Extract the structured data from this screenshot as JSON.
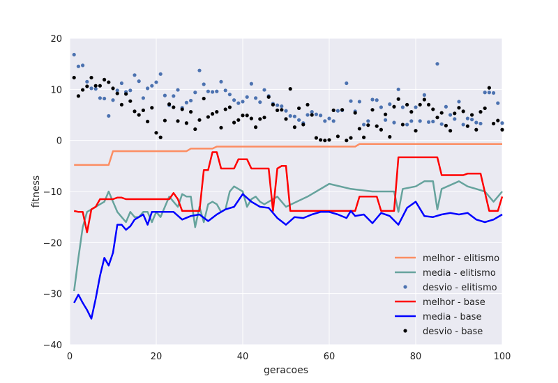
{
  "chart_data": {
    "type": "line",
    "xlabel": "geracoes",
    "ylabel": "fitness",
    "xlim": [
      0,
      100
    ],
    "ylim": [
      -40,
      20
    ],
    "xticks": [
      0,
      20,
      40,
      60,
      80,
      100
    ],
    "yticks": [
      20,
      10,
      0,
      -10,
      -20,
      -30,
      -40
    ],
    "grid": true,
    "legend_position": "lower-right",
    "colors": {
      "background": "#eaeaf2",
      "grid": "#ffffff",
      "melhor_elitismo": "#fc8d62",
      "media_elitismo": "#66a39d",
      "desvio_elitismo": "#4c72b0",
      "melhor_base": "#ff0000",
      "media_base": "#0000ff",
      "desvio_base": "#000000"
    },
    "series": [
      {
        "name": "melhor - elitismo",
        "style": "line",
        "x": [
          1,
          9,
          10,
          27,
          28,
          33,
          34,
          66,
          67,
          100
        ],
        "y": [
          -4.8,
          -4.8,
          -2.1,
          -2.1,
          -1.6,
          -1.6,
          -1.2,
          -1.2,
          -0.7,
          -0.7
        ]
      },
      {
        "name": "media - elitismo",
        "style": "line",
        "x": [
          1,
          2,
          3,
          4,
          5,
          6,
          7,
          8,
          9,
          10,
          11,
          12,
          13,
          14,
          15,
          16,
          17,
          18,
          19,
          20,
          21,
          22,
          23,
          24,
          25,
          26,
          27,
          28,
          29,
          30,
          31,
          32,
          33,
          34,
          35,
          36,
          37,
          38,
          39,
          40,
          41,
          42,
          43,
          44,
          45,
          46,
          47,
          48,
          49,
          50,
          55,
          60,
          65,
          70,
          75,
          76,
          77,
          80,
          82,
          84,
          85,
          86,
          90,
          92,
          94,
          96,
          98,
          100
        ],
        "y": [
          -29.5,
          -23,
          -17,
          -14,
          -13.5,
          -13,
          -12.5,
          -12,
          -10,
          -12,
          -14,
          -15,
          -16,
          -14,
          -15,
          -15,
          -14,
          -14,
          -16,
          -14,
          -15,
          -13,
          -11,
          -12,
          -13,
          -10.5,
          -11,
          -11,
          -17,
          -13,
          -16,
          -12.5,
          -12,
          -12.5,
          -14,
          -13.5,
          -10,
          -9,
          -9.5,
          -10,
          -13,
          -11.5,
          -11,
          -12,
          -12.5,
          -12,
          -11.5,
          -11,
          -12,
          -13,
          -11,
          -8.5,
          -9.5,
          -10,
          -10,
          -14,
          -9.5,
          -9,
          -8,
          -8,
          -13.5,
          -9.5,
          -8,
          -9,
          -9.5,
          -10,
          -12,
          -10
        ]
      },
      {
        "name": "desvio - elitismo",
        "style": "scatter",
        "x": [
          1,
          2,
          3,
          4,
          5,
          6,
          7,
          8,
          9,
          10,
          11,
          12,
          13,
          14,
          15,
          16,
          17,
          18,
          19,
          20,
          21,
          22,
          23,
          24,
          25,
          26,
          27,
          28,
          29,
          30,
          31,
          32,
          33,
          34,
          35,
          36,
          37,
          38,
          39,
          40,
          41,
          42,
          43,
          44,
          45,
          46,
          47,
          48,
          49,
          50,
          51,
          52,
          53,
          54,
          55,
          56,
          57,
          58,
          59,
          60,
          61,
          62,
          63,
          64,
          65,
          66,
          67,
          68,
          69,
          70,
          71,
          72,
          73,
          74,
          75,
          76,
          77,
          78,
          79,
          80,
          81,
          82,
          83,
          84,
          85,
          86,
          87,
          88,
          89,
          90,
          91,
          92,
          93,
          94,
          95,
          96,
          97,
          98,
          99,
          100
        ],
        "y": [
          16.8,
          14.5,
          14.7,
          11.5,
          10.2,
          10.1,
          8.3,
          8.2,
          4.8,
          7.9,
          9.8,
          11.2,
          9.5,
          9.8,
          12.8,
          11.6,
          8.3,
          10.2,
          10.7,
          11.4,
          13.0,
          8.8,
          6.9,
          8.7,
          9.9,
          6.4,
          7.4,
          7.8,
          9.4,
          13.7,
          11.0,
          9.6,
          9.5,
          9.6,
          11.5,
          9.8,
          9.0,
          7.9,
          7.3,
          7.6,
          8.5,
          11.1,
          8.3,
          7.5,
          9.9,
          8.7,
          7.2,
          6.9,
          6.7,
          5.8,
          4.8,
          4.7,
          4.0,
          3.4,
          5.0,
          5.6,
          5.1,
          4.9,
          3.8,
          4.3,
          3.8,
          5.8,
          5.9,
          11.2,
          7.7,
          5.7,
          7.6,
          3.1,
          3.8,
          8.0,
          7.9,
          6.5,
          4.0,
          7.1,
          3.5,
          10.0,
          6.5,
          3.1,
          3.8,
          6.5,
          3.8,
          8.9,
          3.6,
          3.7,
          15.0,
          3.2,
          6.6,
          5.0,
          4.2,
          7.6,
          3.1,
          4.3,
          4.1,
          3.5,
          3.3,
          9.4,
          9.4,
          9.3,
          7.3,
          3.4
        ]
      },
      {
        "name": "melhor - base",
        "style": "line",
        "x": [
          1,
          2,
          3,
          4,
          5,
          6,
          7,
          10,
          11,
          12,
          13,
          15,
          16,
          17,
          18,
          19,
          20,
          21,
          22,
          23,
          24,
          25,
          26,
          27,
          28,
          29,
          30,
          31,
          32,
          33,
          34,
          35,
          36,
          37,
          38,
          39,
          40,
          41,
          42,
          43,
          44,
          45,
          46,
          47,
          48,
          49,
          50,
          51,
          52,
          55,
          60,
          65,
          66,
          67,
          70,
          71,
          72,
          74,
          75,
          76,
          80,
          85,
          86,
          90,
          91,
          92,
          95,
          97,
          99,
          100
        ],
        "y": [
          -13.8,
          -14,
          -14,
          -18,
          -13.5,
          -13,
          -11.5,
          -11.5,
          -11.2,
          -11.2,
          -11.5,
          -11.5,
          -11.5,
          -11.5,
          -11.5,
          -11.5,
          -11.5,
          -11.5,
          -11.5,
          -11.5,
          -10.3,
          -11.5,
          -13.8,
          -13.8,
          -13.8,
          -13.8,
          -13.8,
          -5.8,
          -5.8,
          -2.3,
          -2.3,
          -5.5,
          -5.5,
          -5.5,
          -5.5,
          -3.7,
          -3.7,
          -3.7,
          -5.5,
          -5.5,
          -5.5,
          -5.5,
          -5.5,
          -13.8,
          -5.5,
          -5,
          -5,
          -13.8,
          -13.8,
          -13.8,
          -13.8,
          -13.8,
          -13.8,
          -11,
          -11,
          -11,
          -13.8,
          -13.8,
          -13.8,
          -3.3,
          -3.3,
          -3.3,
          -6.8,
          -6.8,
          -6.8,
          -6.5,
          -6.5,
          -13.8,
          -13.8,
          -11
        ]
      },
      {
        "name": "media - base",
        "style": "line",
        "x": [
          1,
          2,
          3,
          4,
          5,
          6,
          7,
          8,
          9,
          10,
          11,
          12,
          13,
          14,
          15,
          16,
          17,
          18,
          19,
          20,
          22,
          24,
          26,
          28,
          30,
          32,
          34,
          36,
          38,
          40,
          42,
          44,
          46,
          48,
          50,
          52,
          54,
          56,
          58,
          60,
          62,
          64,
          65,
          66,
          68,
          70,
          72,
          74,
          76,
          78,
          80,
          82,
          84,
          86,
          88,
          90,
          92,
          94,
          96,
          98,
          100
        ],
        "y": [
          -31.8,
          -30.2,
          -31.8,
          -33.2,
          -34.9,
          -31,
          -26.5,
          -23,
          -24.5,
          -22,
          -16.5,
          -16.5,
          -17.5,
          -16.8,
          -15.5,
          -15,
          -14.5,
          -16.5,
          -14,
          -14,
          -14,
          -14,
          -15.5,
          -14.8,
          -14.5,
          -15.8,
          -14.5,
          -13.5,
          -13,
          -10.5,
          -12,
          -13,
          -13.2,
          -15.2,
          -16.5,
          -15,
          -15.2,
          -14.5,
          -14,
          -14,
          -14.5,
          -15.2,
          -13.8,
          -14.8,
          -14.5,
          -16.2,
          -14.2,
          -14.8,
          -16.5,
          -13.2,
          -12,
          -14.8,
          -15,
          -14.5,
          -14.2,
          -14.5,
          -14.2,
          -15.5,
          -16,
          -15.5,
          -14.5
        ]
      },
      {
        "name": "desvio - base",
        "style": "scatter",
        "x": [
          1,
          2,
          3,
          4,
          5,
          6,
          7,
          8,
          9,
          10,
          11,
          12,
          13,
          14,
          15,
          16,
          17,
          18,
          19,
          20,
          21,
          22,
          23,
          24,
          25,
          26,
          27,
          28,
          29,
          30,
          31,
          32,
          33,
          34,
          35,
          36,
          37,
          38,
          39,
          40,
          41,
          42,
          43,
          44,
          45,
          46,
          47,
          48,
          49,
          50,
          51,
          52,
          53,
          54,
          55,
          56,
          57,
          58,
          59,
          60,
          61,
          62,
          63,
          64,
          65,
          66,
          67,
          68,
          69,
          70,
          71,
          72,
          73,
          74,
          75,
          76,
          77,
          78,
          79,
          80,
          81,
          82,
          83,
          84,
          85,
          86,
          87,
          88,
          89,
          90,
          91,
          92,
          93,
          94,
          95,
          96,
          97,
          98,
          99,
          100
        ],
        "y": [
          12.3,
          8.7,
          9.9,
          10.6,
          12.3,
          10.7,
          10.7,
          11.9,
          11.4,
          10.2,
          9.2,
          7.0,
          9.1,
          7.7,
          5.7,
          5.0,
          5.9,
          3.7,
          6.4,
          1.5,
          0.6,
          3.9,
          7.1,
          6.5,
          3.8,
          6.1,
          3.4,
          5.6,
          2.2,
          4.0,
          8.2,
          4.6,
          5.2,
          5.6,
          2.5,
          6.1,
          6.5,
          3.5,
          4.0,
          4.9,
          4.9,
          4.3,
          2.6,
          4.2,
          4.5,
          8.5,
          7.0,
          5.9,
          6.0,
          4.2,
          10.1,
          2.6,
          6.3,
          3.1,
          7.0,
          5.0,
          0.5,
          0.1,
          0.0,
          0.1,
          5.9,
          0.8,
          6.0,
          0.0,
          0.5,
          5.4,
          2.3,
          0.6,
          3.0,
          6.0,
          2.8,
          2.1,
          5.1,
          0.7,
          6.6,
          8.1,
          3.1,
          7.0,
          5.6,
          1.9,
          7.0,
          8.0,
          7.0,
          6.1,
          4.5,
          5.4,
          2.9,
          1.9,
          5.3,
          6.4,
          5.7,
          2.8,
          5.0,
          2.1,
          5.6,
          6.3,
          10.3,
          3.3,
          3.9,
          2.1
        ]
      }
    ],
    "legend": [
      {
        "label": "melhor - elitismo",
        "kind": "line",
        "color": "#fc8d62"
      },
      {
        "label": "media - elitismo",
        "kind": "line",
        "color": "#66a39d"
      },
      {
        "label": "desvio - elitismo",
        "kind": "dot",
        "color": "#4c72b0"
      },
      {
        "label": "melhor - base",
        "kind": "line",
        "color": "#ff0000"
      },
      {
        "label": "media - base",
        "kind": "line",
        "color": "#0000ff"
      },
      {
        "label": "desvio - base",
        "kind": "dot",
        "color": "#000000"
      }
    ]
  }
}
